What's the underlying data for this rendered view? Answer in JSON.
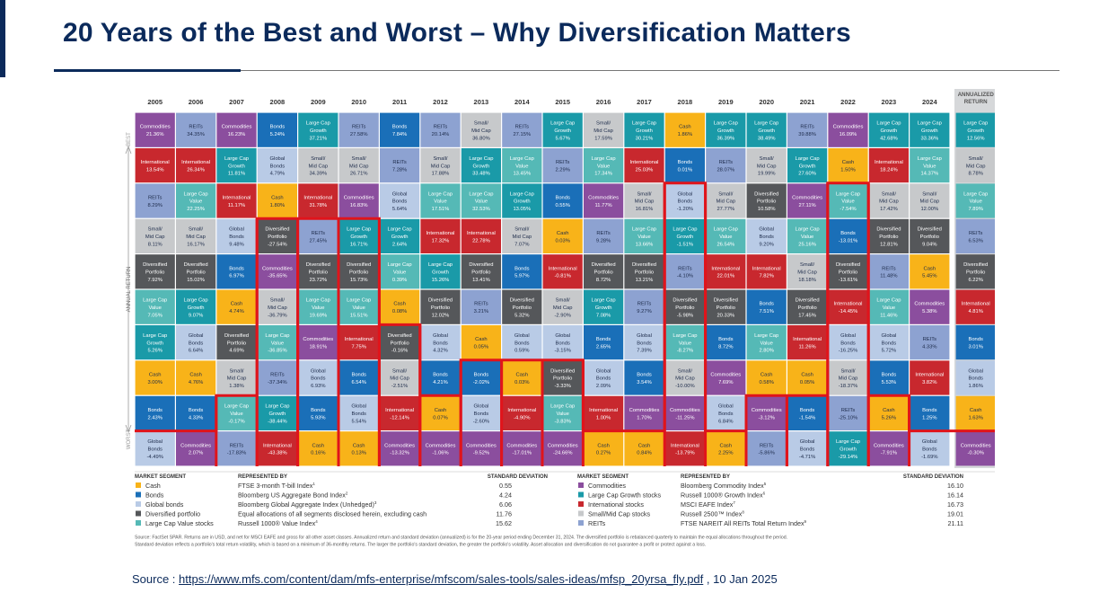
{
  "slide": {
    "title": "20 Years of the Best and Worst – Why Diversification Matters",
    "source_prefix": "Source : ",
    "source_url": "https://www.mfs.com/content/dam/mfs-enterprise/mfscom/sales-tools/sales-ideas/mfsp_20yrsa_fly.pdf",
    "source_suffix": " , 10 Jan 2025"
  },
  "colors": {
    "Commodities": "#8b4e9e",
    "REITs": "#8da2d1",
    "Large Cap Growth": "#1a9aa8",
    "Bonds": "#1a6fb8",
    "Global Bonds": "#b9cbe6",
    "Small/ Mid Cap": "#c7c9cb",
    "Diversified Portfolio": "#55575a",
    "International": "#c8282e",
    "Cash": "#f8b319",
    "Large Cap Value": "#55b9b6",
    "highlight": "#e0141b",
    "title_navy": "#0b2a5b"
  },
  "labels": {
    "best": "BEST",
    "worst": "WORST",
    "annual_return": "ANNUAL RETURN",
    "annualized_line1": "ANNUALIZED",
    "annualized_line2": "RETURN"
  },
  "chart_data": {
    "type": "table",
    "title": "20 Years of the Best and Worst – Why Diversification Matters",
    "categories": [
      "2005",
      "2006",
      "2007",
      "2008",
      "2009",
      "2010",
      "2011",
      "2012",
      "2013",
      "2014",
      "2015",
      "2016",
      "2017",
      "2018",
      "2019",
      "2020",
      "2021",
      "2022",
      "2023",
      "2024"
    ],
    "columns": [
      [
        [
          "Commodities",
          "21.36%"
        ],
        [
          "International",
          "13.54%"
        ],
        [
          "REITs",
          "8.29%"
        ],
        [
          "Small/ Mid Cap",
          "8.11%"
        ],
        [
          "Diversified Portfolio",
          "7.92%"
        ],
        [
          "Large Cap Value",
          "7.05%"
        ],
        [
          "Large Cap Growth",
          "5.26%"
        ],
        [
          "Cash",
          "3.00%"
        ],
        [
          "Bonds",
          "2.43%"
        ],
        [
          "Global Bonds",
          "-4.49%"
        ]
      ],
      [
        [
          "REITs",
          "34.35%"
        ],
        [
          "International",
          "26.34%"
        ],
        [
          "Large Cap Value",
          "22.25%"
        ],
        [
          "Small/ Mid Cap",
          "16.17%"
        ],
        [
          "Diversified Portfolio",
          "15.02%"
        ],
        [
          "Large Cap Growth",
          "9.07%"
        ],
        [
          "Global Bonds",
          "6.64%"
        ],
        [
          "Cash",
          "4.76%"
        ],
        [
          "Bonds",
          "4.33%"
        ],
        [
          "Commodities",
          "2.07%"
        ]
      ],
      [
        [
          "Commodities",
          "16.23%"
        ],
        [
          "Large Cap Growth",
          "11.81%"
        ],
        [
          "International",
          "11.17%"
        ],
        [
          "Global Bonds",
          "9.48%"
        ],
        [
          "Bonds",
          "6.97%"
        ],
        [
          "Cash",
          "4.74%"
        ],
        [
          "Diversified Portfolio",
          "4.69%"
        ],
        [
          "Small/ Mid Cap",
          "1.38%"
        ],
        [
          "Large Cap Value",
          "-0.17%"
        ],
        [
          "REITs",
          "-17.83%"
        ]
      ],
      [
        [
          "Bonds",
          "5.24%"
        ],
        [
          "Global Bonds",
          "4.79%"
        ],
        [
          "Cash",
          "1.80%"
        ],
        [
          "Diversified Portfolio",
          "-27.54%"
        ],
        [
          "Commodities",
          "-35.65%"
        ],
        [
          "Small/ Mid Cap",
          "-36.79%"
        ],
        [
          "Large Cap Value",
          "-36.85%"
        ],
        [
          "REITs",
          "-37.34%"
        ],
        [
          "Large Cap Growth",
          "-38.44%"
        ],
        [
          "International",
          "-43.38%"
        ]
      ],
      [
        [
          "Large Cap Growth",
          "37.21%"
        ],
        [
          "Small/ Mid Cap",
          "34.39%"
        ],
        [
          "International",
          "31.78%"
        ],
        [
          "REITs",
          "27.45%"
        ],
        [
          "Diversified Portfolio",
          "23.72%"
        ],
        [
          "Large Cap Value",
          "19.69%"
        ],
        [
          "Commodities",
          "18.91%"
        ],
        [
          "Global Bonds",
          "6.93%"
        ],
        [
          "Bonds",
          "5.93%"
        ],
        [
          "Cash",
          "0.16%"
        ]
      ],
      [
        [
          "REITs",
          "27.58%"
        ],
        [
          "Small/ Mid Cap",
          "26.71%"
        ],
        [
          "Commodities",
          "16.83%"
        ],
        [
          "Large Cap Growth",
          "16.71%"
        ],
        [
          "Diversified Portfolio",
          "15.73%"
        ],
        [
          "Large Cap Value",
          "15.51%"
        ],
        [
          "International",
          "7.75%"
        ],
        [
          "Bonds",
          "6.54%"
        ],
        [
          "Global Bonds",
          "5.54%"
        ],
        [
          "Cash",
          "0.13%"
        ]
      ],
      [
        [
          "Bonds",
          "7.84%"
        ],
        [
          "REITs",
          "7.28%"
        ],
        [
          "Global Bonds",
          "5.64%"
        ],
        [
          "Large Cap Growth",
          "2.64%"
        ],
        [
          "Large Cap Value",
          "0.39%"
        ],
        [
          "Cash",
          "0.08%"
        ],
        [
          "Diversified Portfolio",
          "-0.16%"
        ],
        [
          "Small/ Mid Cap",
          "-2.51%"
        ],
        [
          "International",
          "-12.14%"
        ],
        [
          "Commodities",
          "-13.32%"
        ]
      ],
      [
        [
          "REITs",
          "20.14%"
        ],
        [
          "Small/ Mid Cap",
          "17.88%"
        ],
        [
          "Large Cap Value",
          "17.51%"
        ],
        [
          "International",
          "17.32%"
        ],
        [
          "Large Cap Growth",
          "15.26%"
        ],
        [
          "Diversified Portfolio",
          "12.02%"
        ],
        [
          "Global Bonds",
          "4.32%"
        ],
        [
          "Bonds",
          "4.21%"
        ],
        [
          "Cash",
          "0.07%"
        ],
        [
          "Commodities",
          "-1.06%"
        ]
      ],
      [
        [
          "Small/ Mid Cap",
          "36.80%"
        ],
        [
          "Large Cap Growth",
          "33.48%"
        ],
        [
          "Large Cap Value",
          "32.53%"
        ],
        [
          "International",
          "22.78%"
        ],
        [
          "Diversified Portfolio",
          "13.41%"
        ],
        [
          "REITs",
          "3.21%"
        ],
        [
          "Cash",
          "0.05%"
        ],
        [
          "Bonds",
          "-2.02%"
        ],
        [
          "Global Bonds",
          "-2.60%"
        ],
        [
          "Commodities",
          "-9.52%"
        ]
      ],
      [
        [
          "REITs",
          "27.15%"
        ],
        [
          "Large Cap Value",
          "13.45%"
        ],
        [
          "Large Cap Growth",
          "13.05%"
        ],
        [
          "Small/ Mid Cap",
          "7.07%"
        ],
        [
          "Bonds",
          "5.97%"
        ],
        [
          "Diversified Portfolio",
          "5.32%"
        ],
        [
          "Global Bonds",
          "0.59%"
        ],
        [
          "Cash",
          "0.03%"
        ],
        [
          "International",
          "-4.90%"
        ],
        [
          "Commodities",
          "-17.01%"
        ]
      ],
      [
        [
          "Large Cap Growth",
          "5.67%"
        ],
        [
          "REITs",
          "2.29%"
        ],
        [
          "Bonds",
          "0.55%"
        ],
        [
          "Cash",
          "0.03%"
        ],
        [
          "International",
          "-0.81%"
        ],
        [
          "Small/ Mid Cap",
          "-2.90%"
        ],
        [
          "Global Bonds",
          "-3.15%"
        ],
        [
          "Diversified Portfolio",
          "-3.33%"
        ],
        [
          "Large Cap Value",
          "-3.83%"
        ],
        [
          "Commodities",
          "-24.66%"
        ]
      ],
      [
        [
          "Small/ Mid Cap",
          "17.59%"
        ],
        [
          "Large Cap Value",
          "17.34%"
        ],
        [
          "Commodities",
          "11.77%"
        ],
        [
          "REITs",
          "9.28%"
        ],
        [
          "Diversified Portfolio",
          "8.72%"
        ],
        [
          "Large Cap Growth",
          "7.08%"
        ],
        [
          "Bonds",
          "2.65%"
        ],
        [
          "Global Bonds",
          "2.09%"
        ],
        [
          "International",
          "1.00%"
        ],
        [
          "Cash",
          "0.27%"
        ]
      ],
      [
        [
          "Large Cap Growth",
          "30.21%"
        ],
        [
          "International",
          "25.03%"
        ],
        [
          "Small/ Mid Cap",
          "16.81%"
        ],
        [
          "Large Cap Value",
          "13.66%"
        ],
        [
          "Diversified Portfolio",
          "13.21%"
        ],
        [
          "REITs",
          "9.27%"
        ],
        [
          "Global Bonds",
          "7.39%"
        ],
        [
          "Bonds",
          "3.54%"
        ],
        [
          "Commodities",
          "1.70%"
        ],
        [
          "Cash",
          "0.84%"
        ]
      ],
      [
        [
          "Cash",
          "1.86%"
        ],
        [
          "Bonds",
          "0.01%"
        ],
        [
          "Global Bonds",
          "-1.20%"
        ],
        [
          "Large Cap Growth",
          "-1.51%"
        ],
        [
          "REITs",
          "-4.10%"
        ],
        [
          "Diversified Portfolio",
          "-5.98%"
        ],
        [
          "Large Cap Value",
          "-8.27%"
        ],
        [
          "Small/ Mid Cap",
          "-10.00%"
        ],
        [
          "Commodities",
          "-11.25%"
        ],
        [
          "International",
          "-13.79%"
        ]
      ],
      [
        [
          "Large Cap Growth",
          "36.39%"
        ],
        [
          "REITs",
          "28.07%"
        ],
        [
          "Small/ Mid Cap",
          "27.77%"
        ],
        [
          "Large Cap Value",
          "26.54%"
        ],
        [
          "International",
          "22.01%"
        ],
        [
          "Diversified Portfolio",
          "20.33%"
        ],
        [
          "Bonds",
          "8.72%"
        ],
        [
          "Commodities",
          "7.69%"
        ],
        [
          "Global Bonds",
          "6.84%"
        ],
        [
          "Cash",
          "2.25%"
        ]
      ],
      [
        [
          "Large Cap Growth",
          "38.49%"
        ],
        [
          "Small/ Mid Cap",
          "19.99%"
        ],
        [
          "Diversified Portfolio",
          "10.58%"
        ],
        [
          "Global Bonds",
          "9.20%"
        ],
        [
          "International",
          "7.82%"
        ],
        [
          "Bonds",
          "7.51%"
        ],
        [
          "Large Cap Value",
          "2.80%"
        ],
        [
          "Cash",
          "0.58%"
        ],
        [
          "Commodities",
          "-3.12%"
        ],
        [
          "REITs",
          "-5.86%"
        ]
      ],
      [
        [
          "REITs",
          "39.88%"
        ],
        [
          "Large Cap Growth",
          "27.60%"
        ],
        [
          "Commodities",
          "27.11%"
        ],
        [
          "Large Cap Value",
          "25.16%"
        ],
        [
          "Small/ Mid Cap",
          "18.18%"
        ],
        [
          "Diversified Portfolio",
          "17.45%"
        ],
        [
          "International",
          "11.26%"
        ],
        [
          "Cash",
          "0.05%"
        ],
        [
          "Bonds",
          "-1.54%"
        ],
        [
          "Global Bonds",
          "-4.71%"
        ]
      ],
      [
        [
          "Commodities",
          "16.09%"
        ],
        [
          "Cash",
          "1.50%"
        ],
        [
          "Large Cap Value",
          "-7.54%"
        ],
        [
          "Bonds",
          "-13.01%"
        ],
        [
          "Diversified Portfolio",
          "-13.61%"
        ],
        [
          "International",
          "-14.45%"
        ],
        [
          "Global Bonds",
          "-16.25%"
        ],
        [
          "Small/ Mid Cap",
          "-18.37%"
        ],
        [
          "REITs",
          "-25.10%"
        ],
        [
          "Large Cap Growth",
          "-29.14%"
        ]
      ],
      [
        [
          "Large Cap Growth",
          "42.68%"
        ],
        [
          "International",
          "18.24%"
        ],
        [
          "Small/ Mid Cap",
          "17.42%"
        ],
        [
          "Diversified Portfolio",
          "12.81%"
        ],
        [
          "REITs",
          "11.48%"
        ],
        [
          "Large Cap Value",
          "11.46%"
        ],
        [
          "Global Bonds",
          "5.72%"
        ],
        [
          "Bonds",
          "5.53%"
        ],
        [
          "Cash",
          "5.26%"
        ],
        [
          "Commodities",
          "-7.91%"
        ]
      ],
      [
        [
          "Large Cap Growth",
          "33.36%"
        ],
        [
          "Large Cap Value",
          "14.37%"
        ],
        [
          "Small/ Mid Cap",
          "12.00%"
        ],
        [
          "Diversified Portfolio",
          "9.04%"
        ],
        [
          "Cash",
          "5.45%"
        ],
        [
          "Commodities",
          "5.38%"
        ],
        [
          "REITs",
          "4.33%"
        ],
        [
          "International",
          "3.82%"
        ],
        [
          "Bonds",
          "1.25%"
        ],
        [
          "Global Bonds",
          "-1.69%"
        ]
      ]
    ],
    "annualized": [
      [
        "Large Cap Growth",
        "12.56%"
      ],
      [
        "Small/ Mid Cap",
        "8.78%"
      ],
      [
        "Large Cap Value",
        "7.89%"
      ],
      [
        "REITs",
        "6.53%"
      ],
      [
        "Diversified Portfolio",
        "6.22%"
      ],
      [
        "International",
        "4.81%"
      ],
      [
        "Bonds",
        "3.01%"
      ],
      [
        "Global Bonds",
        "1.86%"
      ],
      [
        "Cash",
        "1.63%"
      ],
      [
        "Commodities",
        "-0.30%"
      ]
    ],
    "highlighted_cells": [
      {
        "col": 0,
        "row": 9
      },
      {
        "col": 1,
        "row": 9
      },
      {
        "col": 2,
        "row": 8
      },
      {
        "col": 2,
        "row": 9
      },
      {
        "col": 3,
        "row": 3
      },
      {
        "col": 3,
        "row": 4
      },
      {
        "col": 3,
        "row": 5
      },
      {
        "col": 3,
        "row": 6
      },
      {
        "col": 3,
        "row": 7
      },
      {
        "col": 3,
        "row": 8
      },
      {
        "col": 3,
        "row": 9
      },
      {
        "col": 6,
        "row": 6
      },
      {
        "col": 6,
        "row": 7
      },
      {
        "col": 6,
        "row": 8
      },
      {
        "col": 6,
        "row": 9
      },
      {
        "col": 7,
        "row": 8
      },
      {
        "col": 7,
        "row": 9
      },
      {
        "col": 8,
        "row": 7
      },
      {
        "col": 8,
        "row": 8
      },
      {
        "col": 8,
        "row": 9
      },
      {
        "col": 11,
        "row": 9
      },
      {
        "col": 12,
        "row": 9
      },
      {
        "col": 13,
        "row": 2
      },
      {
        "col": 13,
        "row": 3
      },
      {
        "col": 13,
        "row": 4
      },
      {
        "col": 13,
        "row": 5
      },
      {
        "col": 13,
        "row": 6
      },
      {
        "col": 13,
        "row": 7
      },
      {
        "col": 13,
        "row": 8
      },
      {
        "col": 13,
        "row": 9
      },
      {
        "col": 14,
        "row": 9
      },
      {
        "col": 17,
        "row": 2
      },
      {
        "col": 17,
        "row": 3
      },
      {
        "col": 17,
        "row": 4
      },
      {
        "col": 17,
        "row": 5
      },
      {
        "col": 17,
        "row": 6
      },
      {
        "col": 17,
        "row": 7
      },
      {
        "col": 17,
        "row": 8
      },
      {
        "col": 17,
        "row": 9
      }
    ],
    "highlight_line_boundaries": [
      [
        9,
        9,
        8,
        3,
        3,
        3,
        6,
        8,
        7,
        7,
        7,
        9,
        9,
        2,
        9,
        8,
        8,
        2,
        8,
        9
      ]
    ],
    "legend_headers": {
      "segment": "MARKET SEGMENT",
      "represented": "REPRESENTED BY",
      "std": "STANDARD DEVIATION"
    },
    "legend_left": [
      {
        "segment": "Cash",
        "index": "FTSE 3-month T-bill Index",
        "note": "1",
        "std": "0.55"
      },
      {
        "segment": "Bonds",
        "index": "Bloomberg US Aggregate Bond Index",
        "note": "2",
        "std": "4.24"
      },
      {
        "segment": "Global bonds",
        "index": "Bloomberg Global Aggregate Index (Unhedged)",
        "note": "3",
        "std": "6.06"
      },
      {
        "segment": "Diversified portfolio",
        "index": "Equal allocations of all segments disclosed herein, excluding cash",
        "note": "",
        "std": "11.76"
      },
      {
        "segment": "Large Cap Value stocks",
        "index": "Russell 1000® Value Index",
        "note": "4",
        "std": "15.62"
      }
    ],
    "legend_right": [
      {
        "segment": "Commodities",
        "index": "Bloomberg Commodity Index",
        "note": "5",
        "std": "16.10"
      },
      {
        "segment": "Large Cap Growth stocks",
        "index": "Russell 1000® Growth Index",
        "note": "6",
        "std": "16.14"
      },
      {
        "segment": "International stocks",
        "index": "MSCI EAFE Index",
        "note": "7",
        "std": "16.73"
      },
      {
        "segment": "Small/Mid Cap stocks",
        "index": "Russell 2500™ Index",
        "note": "8",
        "std": "19.01"
      },
      {
        "segment": "REITs",
        "index": "FTSE NAREIT All REITs Total Return Index",
        "note": "9",
        "std": "21.11"
      }
    ],
    "footnote_lines": [
      "Source: FactSet SPAR. Returns are in USD, and net for MSCI EAFE and gross for all other asset classes. Annualized return and standard deviation (annualized) is for the 20-year period ending December 31, 2024. The diversified portfolio is rebalanced quarterly to maintain the equal allocations throughout the period.",
      "Standard deviation reflects a portfolio's total return volatility, which is based on a minimum of 36-monthly returns. The larger the portfolio's standard deviation, the greater the portfolio's volatility. Asset allocation and diversification do not guarantee a profit or protect against a loss."
    ]
  }
}
